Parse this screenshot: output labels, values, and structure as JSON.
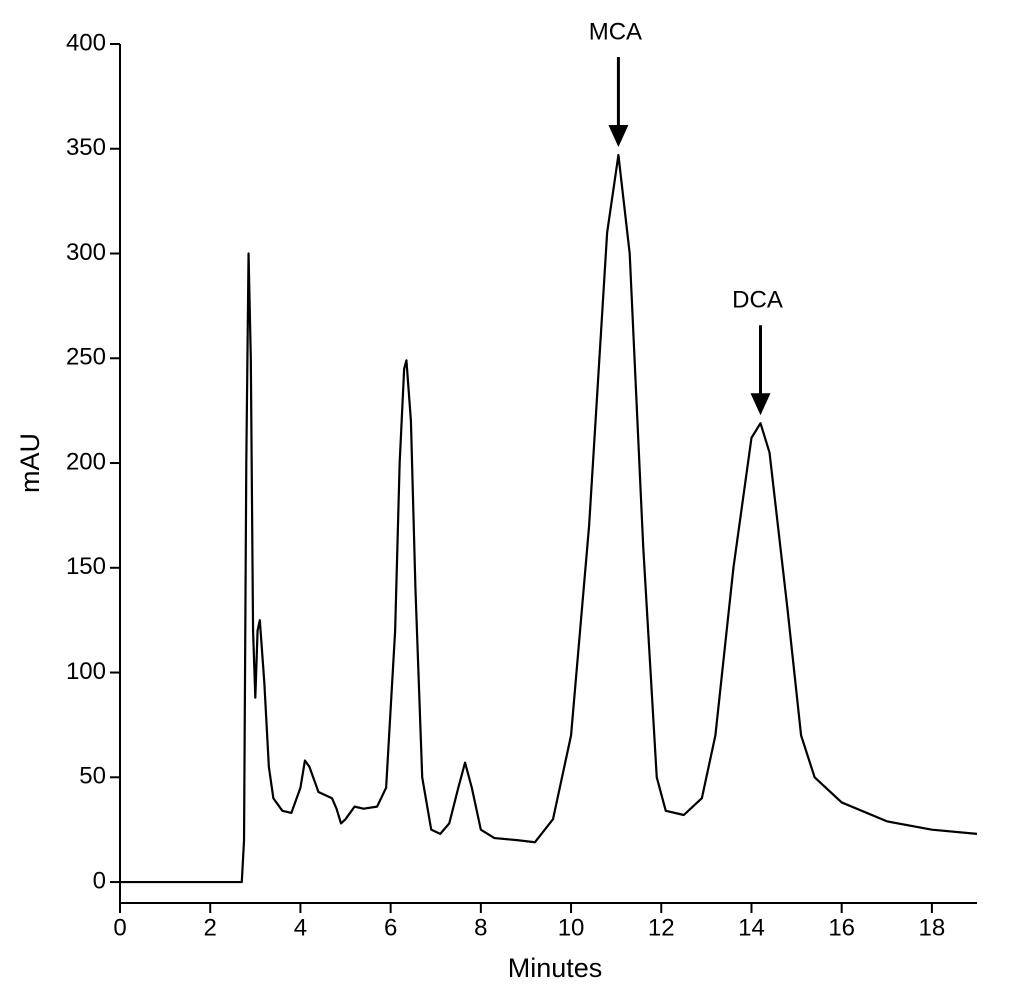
{
  "chart_data": {
    "type": "line",
    "x_label": "Minutes",
    "y_label": "mAU",
    "xlim": [
      0,
      19
    ],
    "ylim": [
      -10,
      400
    ],
    "xticks": [
      0,
      2,
      4,
      6,
      8,
      10,
      12,
      14,
      16,
      18
    ],
    "yticks": [
      0,
      50,
      100,
      150,
      200,
      250,
      300,
      350,
      400
    ],
    "color": "#000000",
    "x": [
      0,
      2.6,
      2.7,
      2.75,
      2.8,
      2.85,
      2.9,
      2.95,
      3.0,
      3.05,
      3.1,
      3.2,
      3.3,
      3.4,
      3.6,
      3.8,
      4.0,
      4.1,
      4.2,
      4.4,
      4.7,
      4.8,
      4.9,
      5.0,
      5.2,
      5.4,
      5.7,
      5.9,
      6.1,
      6.2,
      6.3,
      6.35,
      6.45,
      6.55,
      6.7,
      6.9,
      7.1,
      7.3,
      7.5,
      7.65,
      7.8,
      8.0,
      8.3,
      8.8,
      9.2,
      9.6,
      10.0,
      10.4,
      10.8,
      11.05,
      11.3,
      11.6,
      11.9,
      12.1,
      12.5,
      12.9,
      13.2,
      13.6,
      14.0,
      14.2,
      14.4,
      14.8,
      15.1,
      15.4,
      16.0,
      17.0,
      18.0,
      19.0
    ],
    "values": [
      0,
      0,
      0,
      20,
      200,
      300,
      250,
      120,
      88,
      120,
      125,
      95,
      55,
      40,
      34,
      33,
      45,
      58,
      55,
      43,
      40,
      35,
      28,
      30,
      36,
      35,
      36,
      45,
      120,
      200,
      245,
      249,
      220,
      140,
      50,
      25,
      23,
      28,
      45,
      57,
      45,
      25,
      21,
      20,
      19,
      30,
      70,
      170,
      310,
      347,
      300,
      160,
      50,
      34,
      32,
      40,
      70,
      150,
      212,
      219,
      205,
      130,
      70,
      50,
      38,
      29,
      25,
      23
    ],
    "annotations": [
      {
        "text": "MCA",
        "x": 11.05,
        "y": 347
      },
      {
        "text": "DCA",
        "x": 14.2,
        "y": 219
      }
    ]
  }
}
